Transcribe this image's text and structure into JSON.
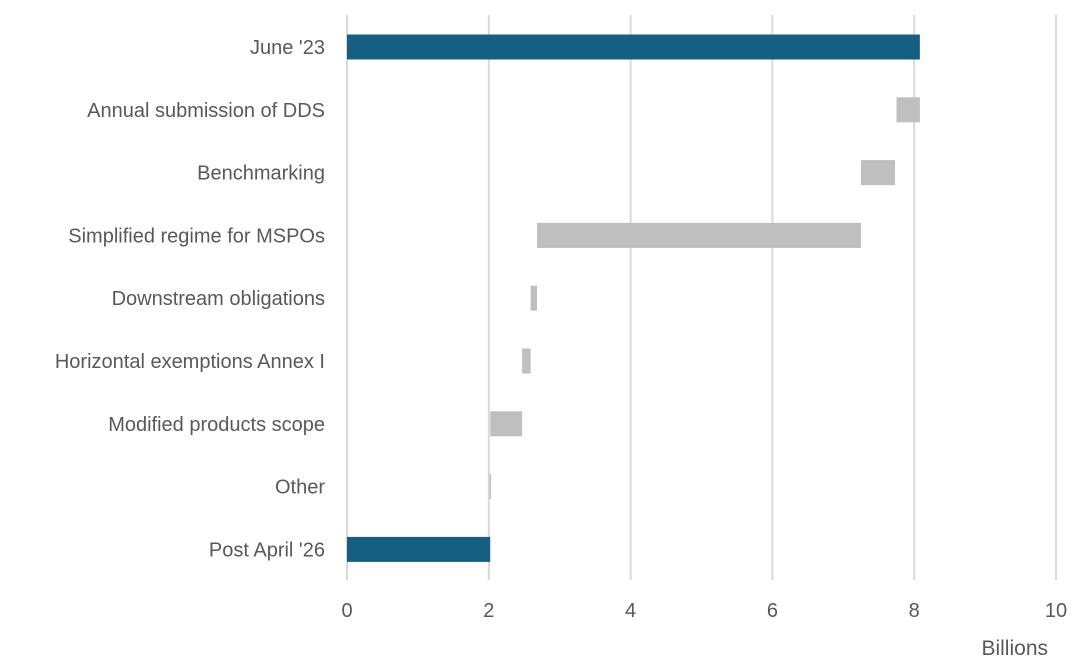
{
  "chart_data": {
    "type": "bar",
    "orientation": "horizontal",
    "subtype": "waterfall",
    "title": "",
    "xlabel": "",
    "ylabel": "",
    "x_unit_label": "Billions",
    "xlim": [
      0,
      10
    ],
    "x_ticks": [
      "0",
      "2",
      "4",
      "6",
      "8",
      "10"
    ],
    "grid": "vertical",
    "legend": "none",
    "colors": {
      "total": "#156082",
      "change": "#bfbfbf"
    },
    "categories": [
      "June '23",
      "Annual submission of DDS",
      "Benchmarking",
      "Simplified regime for MSPOs",
      "Downstream obligations",
      "Horizontal exemptions Annex I",
      "Modified products scope",
      "Other",
      "Post April '26"
    ],
    "bars": [
      {
        "start": 0,
        "end": 8.08,
        "kind": "total"
      },
      {
        "start": 7.75,
        "end": 8.08,
        "kind": "change"
      },
      {
        "start": 7.25,
        "end": 7.73,
        "kind": "change"
      },
      {
        "start": 2.68,
        "end": 7.25,
        "kind": "change"
      },
      {
        "start": 2.59,
        "end": 2.68,
        "kind": "change"
      },
      {
        "start": 2.47,
        "end": 2.59,
        "kind": "change"
      },
      {
        "start": 2.02,
        "end": 2.47,
        "kind": "change"
      },
      {
        "start": 2.01,
        "end": 2.03,
        "kind": "change"
      },
      {
        "start": 0,
        "end": 2.02,
        "kind": "total"
      }
    ]
  }
}
